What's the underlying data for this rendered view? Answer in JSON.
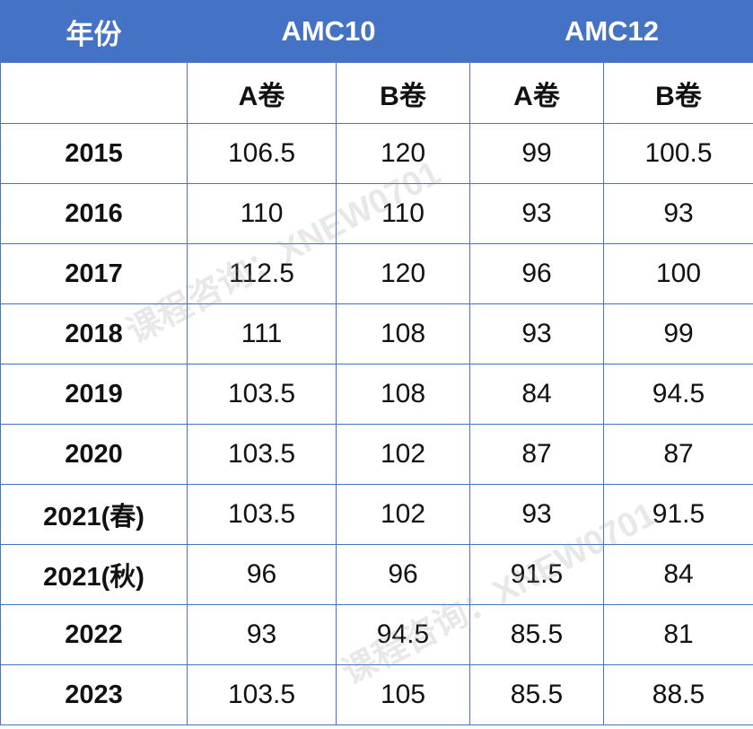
{
  "header": {
    "year_label": "年份",
    "groups": [
      "AMC10",
      "AMC12"
    ],
    "sub": [
      "A卷",
      "B卷",
      "A卷",
      "B卷"
    ]
  },
  "rows": [
    {
      "year": "2015",
      "values": [
        "106.5",
        "120",
        "99",
        "100.5"
      ]
    },
    {
      "year": "2016",
      "values": [
        "110",
        "110",
        "93",
        "93"
      ]
    },
    {
      "year": "2017",
      "values": [
        "112.5",
        "120",
        "96",
        "100"
      ]
    },
    {
      "year": "2018",
      "values": [
        "111",
        "108",
        "93",
        "99"
      ]
    },
    {
      "year": "2019",
      "values": [
        "103.5",
        "108",
        "84",
        "94.5"
      ]
    },
    {
      "year": "2020",
      "values": [
        "103.5",
        "102",
        "87",
        "87"
      ]
    },
    {
      "year": "2021(春)",
      "values": [
        "103.5",
        "102",
        "93",
        "91.5"
      ]
    },
    {
      "year": "2021(秋)",
      "values": [
        "96",
        "96",
        "91.5",
        "84"
      ]
    },
    {
      "year": "2022",
      "values": [
        "93",
        "94.5",
        "85.5",
        "81"
      ]
    },
    {
      "year": "2023",
      "values": [
        "103.5",
        "105",
        "85.5",
        "88.5"
      ]
    }
  ],
  "watermarks": [
    "课程咨询：XNEW0701",
    "课程咨询：XNEW0701"
  ]
}
